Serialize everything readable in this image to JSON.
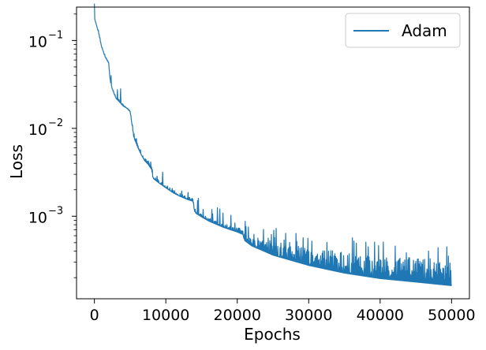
{
  "chart_data": {
    "type": "line",
    "xlabel": "Epochs",
    "ylabel": "Loss",
    "xlim": [
      -2500,
      52500
    ],
    "ylim": [
      0.000115,
      0.24
    ],
    "yscale": "log",
    "x_ticks": [
      0,
      10000,
      20000,
      30000,
      40000,
      50000
    ],
    "x_tick_labels": [
      "0",
      "10000",
      "20000",
      "30000",
      "40000",
      "50000"
    ],
    "y_ticks": [
      0.001,
      0.01,
      0.1
    ],
    "y_tick_labels": [
      {
        "base": "10",
        "exp": "−3"
      },
      {
        "base": "10",
        "exp": "−2"
      },
      {
        "base": "10",
        "exp": "−1"
      }
    ],
    "legend": {
      "position": "upper right"
    },
    "series": [
      {
        "name": "Adam",
        "color": "#1f77b4",
        "x": [
          0,
          500,
          1000,
          1500,
          2000,
          2200,
          2500,
          3000,
          3500,
          4000,
          4500,
          5000,
          5200,
          5500,
          6000,
          6500,
          7000,
          7500,
          8000,
          8200,
          9000,
          10000,
          11000,
          12000,
          13000,
          13800,
          14000,
          14200,
          15000,
          16000,
          18000,
          20000,
          20800,
          21000,
          22000,
          25000,
          30000,
          35000,
          40000,
          45000,
          50000
        ],
        "lower": [
          0.18,
          0.13,
          0.085,
          0.065,
          0.055,
          0.035,
          0.028,
          0.022,
          0.02,
          0.018,
          0.017,
          0.0155,
          0.012,
          0.008,
          0.0062,
          0.0051,
          0.0043,
          0.0039,
          0.0034,
          0.0027,
          0.0024,
          0.0021,
          0.00185,
          0.00168,
          0.00155,
          0.00148,
          0.00115,
          0.00108,
          0.00098,
          0.00088,
          0.00075,
          0.00066,
          0.00062,
          0.00053,
          0.00046,
          0.00036,
          0.000275,
          0.000225,
          0.000195,
          0.000178,
          0.000162
        ],
        "upper": [
          0.18,
          0.14,
          0.088,
          0.068,
          0.058,
          0.037,
          0.029,
          0.023,
          0.021,
          0.019,
          0.0175,
          0.016,
          0.0135,
          0.009,
          0.0068,
          0.0056,
          0.0047,
          0.0043,
          0.0044,
          0.0029,
          0.0026,
          0.0023,
          0.002,
          0.00182,
          0.00168,
          0.00162,
          0.00135,
          0.00118,
          0.00106,
          0.00096,
          0.00083,
          0.00074,
          0.00072,
          0.00064,
          0.0006,
          0.00052,
          0.00044,
          0.00039,
          0.00036,
          0.00034,
          0.0003
        ]
      }
    ]
  }
}
